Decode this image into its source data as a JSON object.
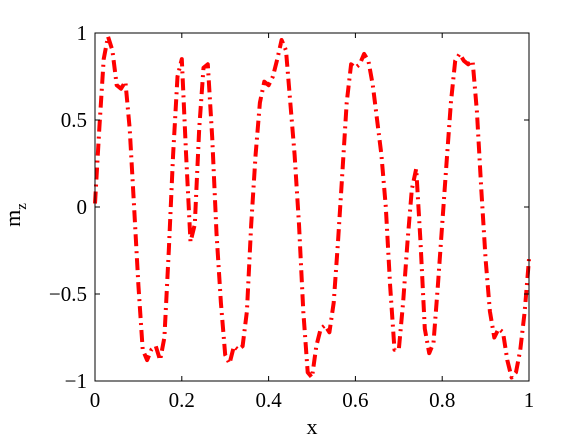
{
  "chart_data": {
    "type": "line",
    "title": "",
    "xlabel": "x",
    "ylabel": "m",
    "ylabel_subscript": "z",
    "xlim": [
      0,
      1
    ],
    "ylim": [
      -1,
      1
    ],
    "xticks": [
      0,
      0.2,
      0.4,
      0.6,
      0.8,
      1
    ],
    "xtick_labels": [
      "0",
      "0.2",
      "0.4",
      "0.6",
      "0.8",
      "1"
    ],
    "yticks": [
      -1,
      -0.5,
      0,
      0.5,
      1
    ],
    "ytick_labels": [
      "−1",
      "−0.5",
      "0",
      "0.5",
      "1"
    ],
    "grid": false,
    "series": [
      {
        "color": "#ff0000",
        "line_style": "dash-dot",
        "x": [
          0.0,
          0.01,
          0.02,
          0.03,
          0.04,
          0.05,
          0.06,
          0.07,
          0.08,
          0.09,
          0.1,
          0.11,
          0.12,
          0.13,
          0.14,
          0.15,
          0.16,
          0.17,
          0.18,
          0.19,
          0.2,
          0.21,
          0.22,
          0.23,
          0.24,
          0.25,
          0.26,
          0.27,
          0.28,
          0.29,
          0.3,
          0.31,
          0.32,
          0.33,
          0.34,
          0.35,
          0.36,
          0.37,
          0.38,
          0.39,
          0.4,
          0.41,
          0.42,
          0.43,
          0.44,
          0.45,
          0.46,
          0.47,
          0.48,
          0.49,
          0.5,
          0.51,
          0.52,
          0.53,
          0.54,
          0.55,
          0.56,
          0.57,
          0.58,
          0.59,
          0.6,
          0.61,
          0.62,
          0.63,
          0.64,
          0.65,
          0.66,
          0.67,
          0.68,
          0.69,
          0.7,
          0.71,
          0.72,
          0.73,
          0.74,
          0.75,
          0.76,
          0.77,
          0.78,
          0.79,
          0.8,
          0.81,
          0.82,
          0.83,
          0.84,
          0.85,
          0.86,
          0.87,
          0.88,
          0.89,
          0.9,
          0.91,
          0.92,
          0.93,
          0.94,
          0.95,
          0.96,
          0.97,
          0.98,
          0.99,
          1.0
        ],
        "y": [
          0.02,
          0.45,
          0.85,
          0.98,
          0.9,
          0.7,
          0.68,
          0.72,
          0.45,
          0.0,
          -0.45,
          -0.82,
          -0.88,
          -0.82,
          -0.8,
          -0.88,
          -0.75,
          -0.25,
          0.3,
          0.75,
          0.85,
          0.3,
          -0.2,
          -0.1,
          0.45,
          0.8,
          0.82,
          0.4,
          -0.15,
          -0.55,
          -0.85,
          -0.9,
          -0.8,
          -0.82,
          -0.8,
          -0.6,
          -0.1,
          0.3,
          0.6,
          0.72,
          0.7,
          0.75,
          0.85,
          0.96,
          0.9,
          0.6,
          0.3,
          -0.1,
          -0.6,
          -0.95,
          -0.98,
          -0.8,
          -0.7,
          -0.68,
          -0.72,
          -0.55,
          -0.2,
          0.2,
          0.6,
          0.82,
          0.8,
          0.82,
          0.88,
          0.84,
          0.7,
          0.5,
          0.3,
          0.0,
          -0.45,
          -0.82,
          -0.82,
          -0.55,
          -0.2,
          0.1,
          0.22,
          -0.2,
          -0.7,
          -0.84,
          -0.78,
          -0.45,
          -0.1,
          0.25,
          0.6,
          0.84,
          0.88,
          0.84,
          0.82,
          0.84,
          0.55,
          0.1,
          -0.3,
          -0.6,
          -0.75,
          -0.7,
          -0.72,
          -0.88,
          -0.98,
          -0.95,
          -0.82,
          -0.6,
          -0.3
        ]
      }
    ]
  }
}
